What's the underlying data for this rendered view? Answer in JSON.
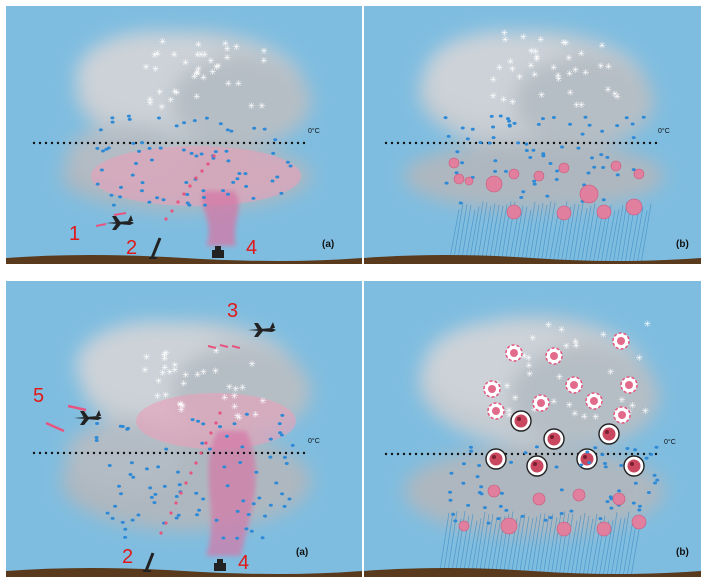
{
  "colors": {
    "sky": "#7fbde0",
    "ground": "#5a3a1c",
    "cloud": "#b9c1c8",
    "drop": "#2e8ad6",
    "seed": "#e6557f",
    "label_red": "#e01818"
  },
  "panels": [
    {
      "id": "top-left",
      "label": "(a)",
      "freezing_label": "0°C"
    },
    {
      "id": "top-right",
      "label": "(b)",
      "freezing_label": "0°C"
    },
    {
      "id": "bottom-left",
      "label": "(a)",
      "freezing_label": "0°C"
    },
    {
      "id": "bottom-right",
      "label": "(b)",
      "freezing_label": "0°C"
    }
  ],
  "markers": {
    "top": [
      "1",
      "2",
      "4"
    ],
    "bottom": [
      "3",
      "5",
      "2",
      "4"
    ]
  },
  "icons": {
    "aircraft": "airplane-icon",
    "ground_generator": "generator-icon",
    "rocket": "rocket-launcher-icon",
    "ice_crystal": "snowflake-icon"
  }
}
